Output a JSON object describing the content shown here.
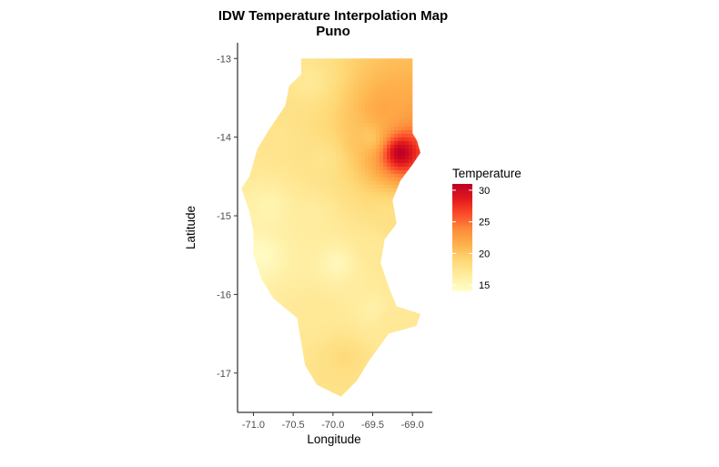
{
  "chart_data": {
    "type": "heatmap",
    "title": "IDW Temperature Interpolation Map",
    "subtitle": "Puno",
    "xlabel": "Longitude",
    "ylabel": "Latitude",
    "xlim": [
      -71.2,
      -68.75
    ],
    "ylim": [
      -17.5,
      -12.8
    ],
    "x_ticks": [
      -71.0,
      -70.5,
      -70.0,
      -69.5,
      -69.0
    ],
    "x_tick_labels": [
      "-71.0",
      "-70.5",
      "-70.0",
      "-69.5",
      "-69.0"
    ],
    "y_ticks": [
      -13,
      -14,
      -15,
      -16,
      -17
    ],
    "y_tick_labels": [
      "-13",
      "-14",
      "-15",
      "-16",
      "-17"
    ],
    "grid": false,
    "legend": {
      "title": "Temperature",
      "placement": "right",
      "range": [
        14,
        31
      ],
      "breaks": [
        15,
        20,
        25,
        30
      ],
      "break_labels": [
        "15",
        "20",
        "25",
        "30"
      ],
      "colors": [
        "#ffffcc",
        "#ffeda0",
        "#fed976",
        "#feb24c",
        "#fd8d3c",
        "#fc4e2a",
        "#e31a1c",
        "#bd0026"
      ]
    },
    "region_outline": [
      [
        -70.4,
        -13.0
      ],
      [
        -69.0,
        -13.0
      ],
      [
        -69.0,
        -13.55
      ],
      [
        -69.0,
        -13.95
      ],
      [
        -68.94,
        -14.05
      ],
      [
        -68.9,
        -14.2
      ],
      [
        -69.0,
        -14.35
      ],
      [
        -69.15,
        -14.55
      ],
      [
        -69.25,
        -14.8
      ],
      [
        -69.2,
        -15.1
      ],
      [
        -69.35,
        -15.3
      ],
      [
        -69.4,
        -15.6
      ],
      [
        -69.3,
        -15.9
      ],
      [
        -69.2,
        -16.15
      ],
      [
        -68.9,
        -16.25
      ],
      [
        -68.95,
        -16.4
      ],
      [
        -69.3,
        -16.5
      ],
      [
        -69.55,
        -16.85
      ],
      [
        -69.7,
        -17.1
      ],
      [
        -69.9,
        -17.3
      ],
      [
        -70.2,
        -17.15
      ],
      [
        -70.35,
        -16.9
      ],
      [
        -70.4,
        -16.6
      ],
      [
        -70.45,
        -16.3
      ],
      [
        -70.75,
        -16.05
      ],
      [
        -70.9,
        -15.8
      ],
      [
        -71.0,
        -15.5
      ],
      [
        -71.0,
        -15.2
      ],
      [
        -71.05,
        -14.95
      ],
      [
        -71.15,
        -14.65
      ],
      [
        -71.05,
        -14.5
      ],
      [
        -70.95,
        -14.15
      ],
      [
        -70.8,
        -13.9
      ],
      [
        -70.6,
        -13.6
      ],
      [
        -70.55,
        -13.35
      ],
      [
        -70.4,
        -13.2
      ]
    ],
    "stations": [
      {
        "lon": -69.15,
        "lat": -14.2,
        "temp": 31
      },
      {
        "lon": -69.35,
        "lat": -13.65,
        "temp": 22
      },
      {
        "lon": -69.55,
        "lat": -14.0,
        "temp": 20
      },
      {
        "lon": -70.3,
        "lat": -13.3,
        "temp": 17
      },
      {
        "lon": -70.7,
        "lat": -14.0,
        "temp": 17.5
      },
      {
        "lon": -70.15,
        "lat": -14.3,
        "temp": 17.5
      },
      {
        "lon": -70.9,
        "lat": -15.5,
        "temp": 14.5
      },
      {
        "lon": -70.8,
        "lat": -14.9,
        "temp": 15.5
      },
      {
        "lon": -70.25,
        "lat": -15.0,
        "temp": 16.5
      },
      {
        "lon": -69.95,
        "lat": -15.6,
        "temp": 15
      },
      {
        "lon": -69.5,
        "lat": -15.4,
        "temp": 17
      },
      {
        "lon": -70.25,
        "lat": -16.2,
        "temp": 17
      },
      {
        "lon": -69.5,
        "lat": -16.2,
        "temp": 16
      },
      {
        "lon": -69.85,
        "lat": -16.8,
        "temp": 18.5
      },
      {
        "lon": -69.3,
        "lat": -16.35,
        "temp": 17
      },
      {
        "lon": -69.3,
        "lat": -15.0,
        "temp": 18
      }
    ]
  }
}
